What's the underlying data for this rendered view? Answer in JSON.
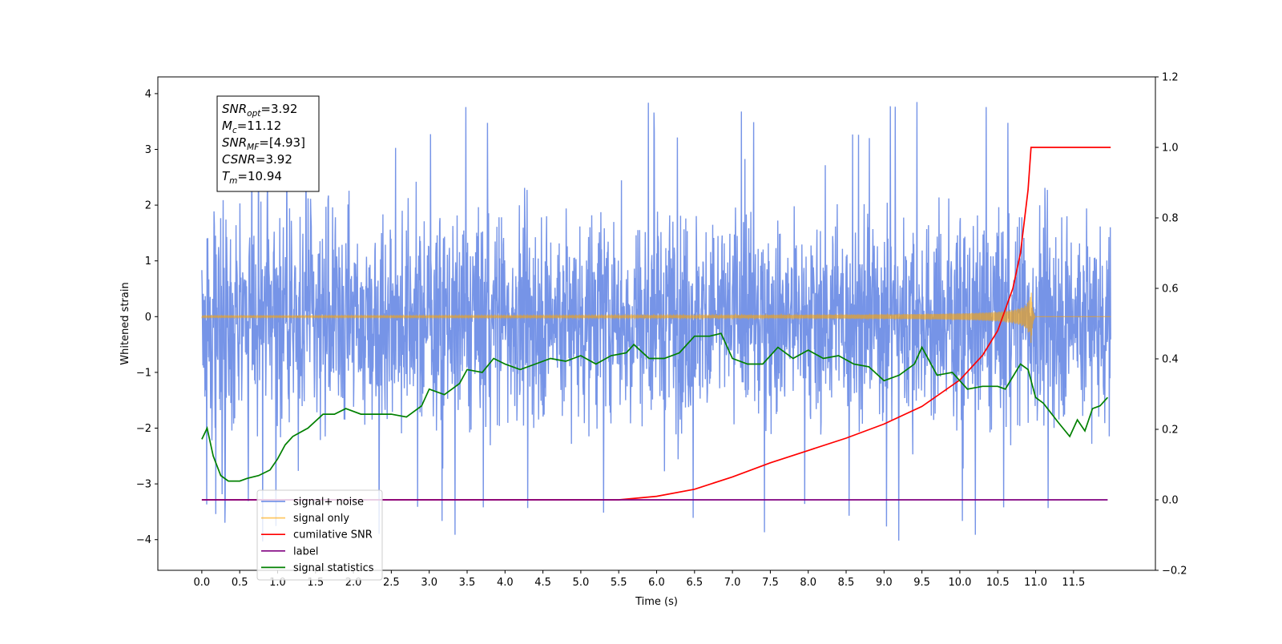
{
  "chart_data": {
    "type": "line",
    "title": "",
    "xlabel": "Time (s)",
    "ylabel": "Whitened strain",
    "xlim": [
      -0.58,
      12.58
    ],
    "ylim": [
      -4.55,
      4.3
    ],
    "y2lim": [
      -0.2,
      1.2
    ],
    "x_ticks": [
      0.0,
      0.5,
      1.0,
      1.5,
      2.0,
      2.5,
      3.0,
      3.5,
      4.0,
      4.5,
      5.0,
      5.5,
      6.0,
      6.5,
      7.0,
      7.5,
      8.0,
      8.5,
      9.0,
      9.5,
      10.0,
      10.5,
      11.0,
      11.5
    ],
    "x_tick_labels": [
      "0.0",
      "0.5",
      "1.0",
      "1.5",
      "2.0",
      "2.5",
      "3.0",
      "3.5",
      "4.0",
      "4.5",
      "5.0",
      "5.5",
      "6.0",
      "6.5",
      "7.0",
      "7.5",
      "8.0",
      "8.5",
      "9.0",
      "9.5",
      "10.0",
      "10.5",
      "11.0",
      "11.5"
    ],
    "y_ticks": [
      -4,
      -3,
      -2,
      -1,
      0,
      1,
      2,
      3,
      4
    ],
    "y_tick_labels": [
      "−4",
      "−3",
      "−2",
      "−1",
      "0",
      "1",
      "2",
      "3",
      "4"
    ],
    "y2_ticks": [
      -0.2,
      0.0,
      0.2,
      0.4,
      0.6,
      0.8,
      1.0,
      1.2
    ],
    "y2_tick_labels": [
      "−0.2",
      "0.0",
      "0.2",
      "0.4",
      "0.6",
      "0.8",
      "1.0",
      "1.2"
    ],
    "grid": false,
    "legend_position": "bottom-left",
    "annotation": {
      "lines": [
        {
          "sym": "SNR",
          "sub": "opt",
          "val": "=3.92"
        },
        {
          "sym": "M",
          "sub": "c",
          "val": "=11.12"
        },
        {
          "sym": "SNR",
          "sub": "MF",
          "val": "=[4.93]"
        },
        {
          "sym": "CSNR",
          "sub": "",
          "val": "=3.92"
        },
        {
          "sym": "T",
          "sub": "m",
          "val": "=10.94"
        }
      ]
    },
    "series": [
      {
        "name": "signal+ noise",
        "color": "#6f8ee6",
        "axis": "left",
        "kind": "noise",
        "x_range": [
          0.0,
          11.99
        ],
        "center": 0.0,
        "typical_range": [
          -2.2,
          2.7
        ],
        "extremes": [
          -4.1,
          3.9
        ]
      },
      {
        "name": "signal only",
        "color": "#ffa500",
        "axis": "left",
        "kind": "chirp",
        "x_range": [
          0.0,
          11.99
        ],
        "merger_time": 10.94,
        "peak_amplitude": 0.5
      },
      {
        "name": "cumilative SNR",
        "color": "#ff0000",
        "axis": "right",
        "x": [
          0.0,
          5.5,
          6.0,
          6.5,
          7.0,
          7.5,
          8.0,
          8.5,
          9.0,
          9.5,
          10.0,
          10.3,
          10.5,
          10.7,
          10.8,
          10.9,
          10.94,
          11.99
        ],
        "values": [
          0.0,
          0.0,
          0.01,
          0.03,
          0.065,
          0.105,
          0.14,
          0.175,
          0.215,
          0.265,
          0.34,
          0.41,
          0.48,
          0.6,
          0.7,
          0.88,
          1.0,
          1.0
        ]
      },
      {
        "name": "label",
        "color": "#800080",
        "axis": "right",
        "x": [
          0.0,
          11.95
        ],
        "values": [
          0.0,
          0.0
        ]
      },
      {
        "name": "signal statistics",
        "color": "#008000",
        "axis": "left",
        "x": [
          0.0,
          0.07,
          0.15,
          0.25,
          0.35,
          0.5,
          0.6,
          0.75,
          0.9,
          1.0,
          1.1,
          1.2,
          1.4,
          1.6,
          1.75,
          1.9,
          2.1,
          2.3,
          2.5,
          2.7,
          2.9,
          3.0,
          3.2,
          3.4,
          3.5,
          3.7,
          3.85,
          4.0,
          4.2,
          4.4,
          4.6,
          4.8,
          5.0,
          5.2,
          5.4,
          5.6,
          5.7,
          5.9,
          6.1,
          6.3,
          6.5,
          6.7,
          6.85,
          7.0,
          7.2,
          7.4,
          7.6,
          7.8,
          8.0,
          8.2,
          8.4,
          8.6,
          8.8,
          9.0,
          9.2,
          9.4,
          9.5,
          9.7,
          9.9,
          10.1,
          10.3,
          10.5,
          10.6,
          10.8,
          10.9,
          11.0,
          11.1,
          11.3,
          11.45,
          11.55,
          11.65,
          11.75,
          11.85,
          11.95
        ],
        "values": [
          -2.2,
          -2.0,
          -2.5,
          -2.85,
          -2.95,
          -2.95,
          -2.9,
          -2.85,
          -2.75,
          -2.55,
          -2.3,
          -2.15,
          -2.0,
          -1.75,
          -1.75,
          -1.65,
          -1.75,
          -1.75,
          -1.75,
          -1.8,
          -1.6,
          -1.3,
          -1.4,
          -1.2,
          -0.95,
          -1.0,
          -0.75,
          -0.85,
          -0.95,
          -0.85,
          -0.75,
          -0.8,
          -0.7,
          -0.85,
          -0.7,
          -0.65,
          -0.5,
          -0.75,
          -0.75,
          -0.65,
          -0.35,
          -0.35,
          -0.3,
          -0.75,
          -0.85,
          -0.85,
          -0.55,
          -0.75,
          -0.6,
          -0.75,
          -0.7,
          -0.85,
          -0.9,
          -1.15,
          -1.05,
          -0.85,
          -0.55,
          -1.05,
          -1.0,
          -1.3,
          -1.25,
          -1.25,
          -1.3,
          -0.85,
          -0.95,
          -1.45,
          -1.55,
          -1.9,
          -2.15,
          -1.85,
          -2.05,
          -1.65,
          -1.6,
          -1.45
        ]
      }
    ]
  }
}
